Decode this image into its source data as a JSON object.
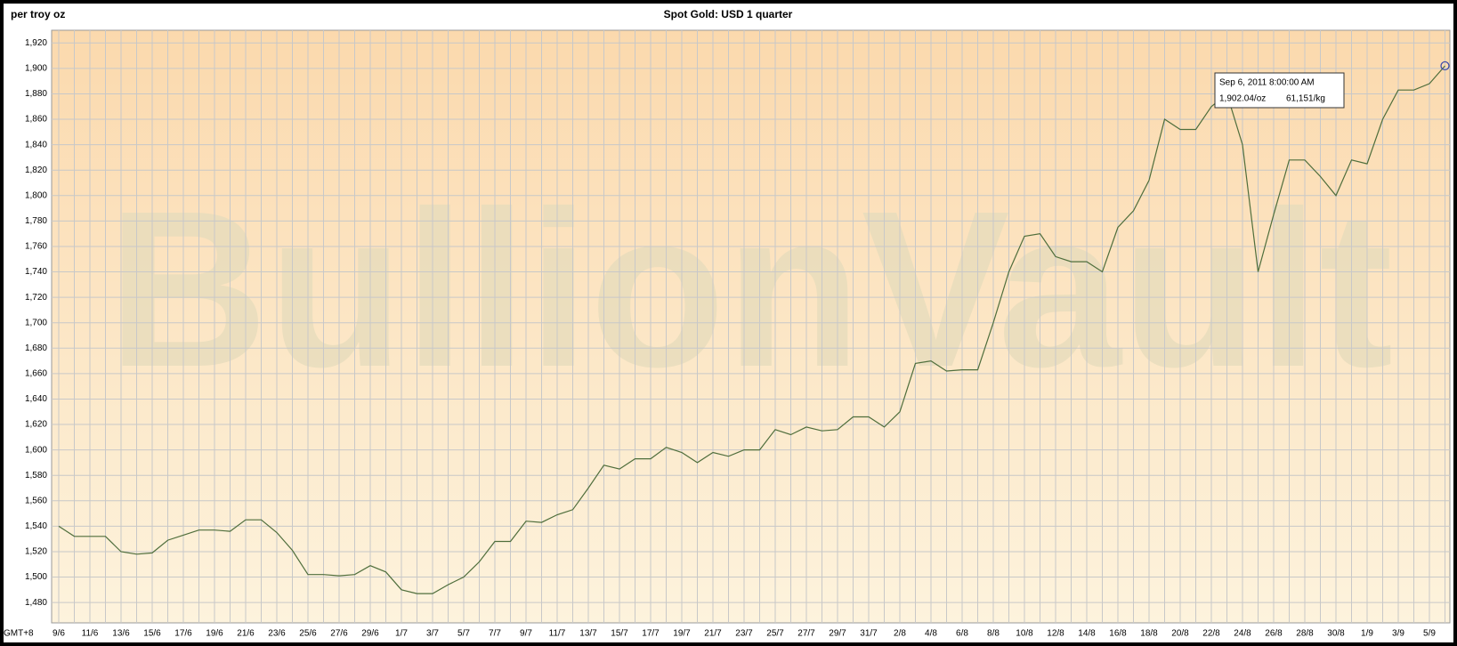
{
  "chart_data": {
    "type": "line",
    "title": "Spot Gold: USD 1 quarter",
    "y_label": "per troy oz",
    "timezone": "GMT+8",
    "watermark": "BullionVault",
    "tooltip": {
      "date": "Sep 6, 2011 8:00:00 AM",
      "price_oz": "1,902.04/oz",
      "price_kg": "61,151/kg"
    },
    "grid": true,
    "color": "#4f6e3c",
    "categories": [
      "9/6",
      null,
      "11/6",
      null,
      "13/6",
      null,
      "15/6",
      null,
      "17/6",
      null,
      "19/6",
      null,
      "21/6",
      null,
      "23/6",
      null,
      "25/6",
      null,
      "27/6",
      null,
      "29/6",
      null,
      "1/7",
      null,
      "3/7",
      null,
      "5/7",
      null,
      "7/7",
      null,
      "9/7",
      null,
      "11/7",
      null,
      "13/7",
      null,
      "15/7",
      null,
      "17/7",
      null,
      "19/7",
      null,
      "21/7",
      null,
      "23/7",
      null,
      "25/7",
      null,
      "27/7",
      null,
      "29/7",
      null,
      "31/7",
      null,
      "2/8",
      null,
      "4/8",
      null,
      "6/8",
      null,
      "8/8",
      null,
      "10/8",
      null,
      "12/8",
      null,
      "14/8",
      null,
      "16/8",
      null,
      "18/8",
      null,
      "20/8",
      null,
      "22/8",
      null,
      "24/8",
      null,
      "26/8",
      null,
      "28/8",
      null,
      "30/8",
      null,
      "1/9",
      null,
      "3/9",
      null,
      "5/9",
      null
    ],
    "values": [
      1540,
      1532,
      1532,
      1532,
      1520,
      1518,
      1519,
      1529,
      1533,
      1537,
      1537,
      1536,
      1545,
      1545,
      1535,
      1521,
      1502,
      1502,
      1501,
      1502,
      1509,
      1504,
      1490,
      1487,
      1487,
      1494,
      1500,
      1512,
      1528,
      1528,
      1544,
      1543,
      1549,
      1553,
      1570,
      1588,
      1585,
      1593,
      1593,
      1602,
      1598,
      1590,
      1598,
      1595,
      1600,
      1600,
      1616,
      1612,
      1618,
      1615,
      1616,
      1626,
      1626,
      1618,
      1630,
      1668,
      1670,
      1662,
      1663,
      1663,
      1700,
      1740,
      1768,
      1770,
      1752,
      1748,
      1748,
      1740,
      1775,
      1788,
      1812,
      1860,
      1852,
      1852,
      1870,
      1880,
      1840,
      1740,
      1785,
      1828,
      1828,
      1815,
      1800,
      1828,
      1825,
      1860,
      1883,
      1883,
      1888,
      1902.04
    ],
    "ylim": [
      1464,
      1930
    ],
    "yticks": [
      {
        "value": 1480,
        "label": "1,480"
      },
      {
        "value": 1500,
        "label": "1,500"
      },
      {
        "value": 1520,
        "label": "1,520"
      },
      {
        "value": 1540,
        "label": "1,540"
      },
      {
        "value": 1560,
        "label": "1,560"
      },
      {
        "value": 1580,
        "label": "1,580"
      },
      {
        "value": 1600,
        "label": "1,600"
      },
      {
        "value": 1620,
        "label": "1,620"
      },
      {
        "value": 1640,
        "label": "1,640"
      },
      {
        "value": 1660,
        "label": "1,660"
      },
      {
        "value": 1680,
        "label": "1,680"
      },
      {
        "value": 1700,
        "label": "1,700"
      },
      {
        "value": 1720,
        "label": "1,720"
      },
      {
        "value": 1740,
        "label": "1,740"
      },
      {
        "value": 1760,
        "label": "1,760"
      },
      {
        "value": 1780,
        "label": "1,780"
      },
      {
        "value": 1800,
        "label": "1,800"
      },
      {
        "value": 1820,
        "label": "1,820"
      },
      {
        "value": 1840,
        "label": "1,840"
      },
      {
        "value": 1860,
        "label": "1,860"
      },
      {
        "value": 1880,
        "label": "1,880"
      },
      {
        "value": 1900,
        "label": "1,900"
      },
      {
        "value": 1920,
        "label": "1,920"
      }
    ]
  }
}
